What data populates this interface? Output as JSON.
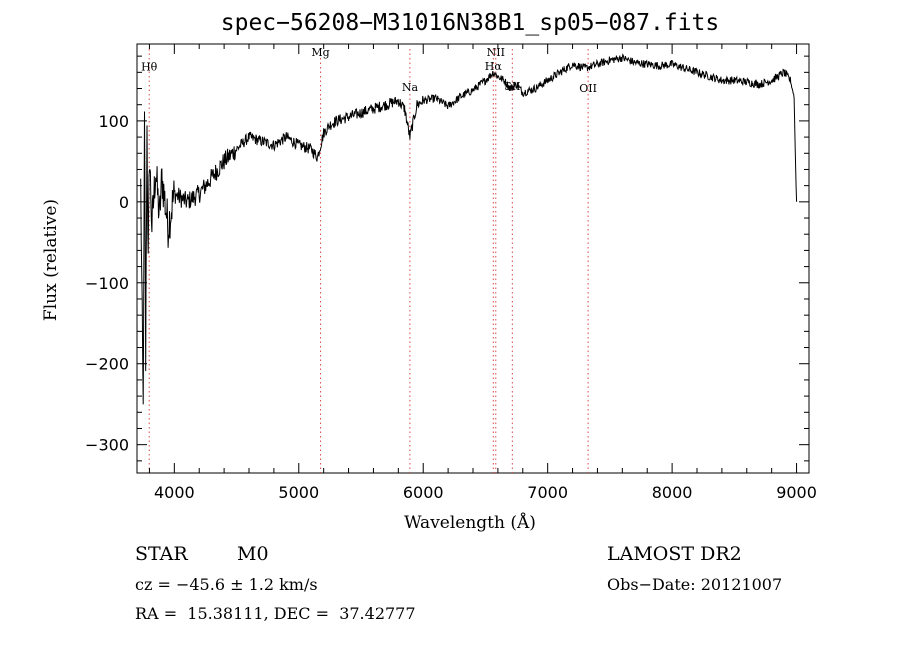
{
  "chart_data": {
    "type": "line",
    "title": "spec−56208−M31016N38B1_sp05−087.fits",
    "xlabel": "Wavelength (Å)",
    "ylabel": "Flux (relative)",
    "xlim": [
      3700,
      9100
    ],
    "ylim": [
      -335,
      195
    ],
    "x_ticks": [
      4000,
      5000,
      6000,
      7000,
      8000,
      9000
    ],
    "y_ticks": [
      -300,
      -200,
      -100,
      0,
      100
    ],
    "grid": false,
    "series": [
      {
        "x": [
          3730,
          3750,
          3760,
          3770,
          3780,
          3790,
          3800,
          3820,
          3850,
          3880,
          3900,
          3950,
          4000,
          4100,
          4200,
          4300,
          4400,
          4500,
          4600,
          4700,
          4800,
          4900,
          5000,
          5100,
          5150,
          5200,
          5250,
          5300,
          5400,
          5500,
          5600,
          5700,
          5800,
          5850,
          5893,
          5950,
          6000,
          6100,
          6200,
          6300,
          6400,
          6500,
          6563,
          6600,
          6650,
          6700,
          6750,
          6800,
          6900,
          7000,
          7100,
          7200,
          7300,
          7400,
          7500,
          7600,
          7700,
          7800,
          7900,
          8000,
          8100,
          8200,
          8300,
          8400,
          8500,
          8600,
          8700,
          8800,
          8900,
          8950,
          8980,
          8990,
          9000
        ],
        "y": [
          20,
          -260,
          100,
          -200,
          90,
          -80,
          60,
          -30,
          40,
          -20,
          30,
          -30,
          10,
          0,
          10,
          30,
          50,
          65,
          80,
          75,
          70,
          80,
          70,
          65,
          55,
          85,
          95,
          100,
          105,
          110,
          115,
          120,
          125,
          115,
          80,
          120,
          125,
          128,
          118,
          130,
          138,
          150,
          160,
          155,
          150,
          140,
          145,
          135,
          140,
          150,
          160,
          170,
          165,
          170,
          175,
          178,
          172,
          170,
          168,
          170,
          165,
          160,
          155,
          150,
          150,
          148,
          145,
          150,
          160,
          150,
          130,
          60,
          0
        ]
      }
    ],
    "lines": [
      {
        "label": "Hθ",
        "x": 3798,
        "label_y": 162
      },
      {
        "label": "Mg",
        "x": 5175,
        "label_y": 180
      },
      {
        "label": "Na",
        "x": 5893,
        "label_y": 137
      },
      {
        "label": "NII",
        "x": 6583,
        "label_y": 180
      },
      {
        "label": "Hα",
        "x": 6563,
        "label_y": 163
      },
      {
        "label": "SII",
        "x": 6716,
        "label_y": 138
      },
      {
        "label": "OII",
        "x": 7325,
        "label_y": 136
      }
    ]
  },
  "footer": {
    "object_type": "STAR",
    "subclass": "M0",
    "survey": "LAMOST DR2",
    "velocity": "cz = −45.6 ± 1.2 km/s",
    "obs_date": "Obs−Date: 20121007",
    "coords": "RA =  15.38111, DEC =  37.42777"
  }
}
